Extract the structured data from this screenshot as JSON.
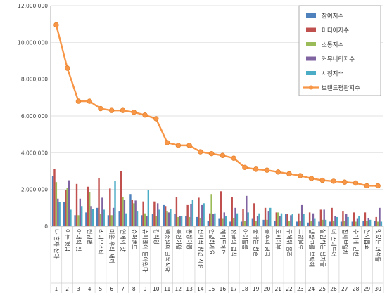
{
  "chart_data": {
    "type": "bar+line",
    "categories": [
      "1",
      "2",
      "3",
      "4",
      "5",
      "6",
      "7",
      "8",
      "9",
      "10",
      "11",
      "12",
      "13",
      "14",
      "15",
      "16",
      "17",
      "18",
      "19",
      "20",
      "21",
      "22",
      "23",
      "24",
      "25",
      "26",
      "27",
      "28",
      "29",
      "30"
    ],
    "program_names": [
      "나 혼자 산다",
      "아는 형님",
      "아내의 맛",
      "런닝맨",
      "라디오스타",
      "미운 우리 새끼",
      "연애의 맛",
      "슈퍼밴드",
      "슈퍼맨이 돌아왔다",
      "강식당",
      "백종원의 골목식당",
      "복면가왕",
      "동상이몽",
      "전지적 참견 시점",
      "안녕하세요",
      "해피투게더",
      "정글의 법칙",
      "아이돌룸",
      "불타는 청춘",
      "불후의 명곡",
      "도시어부",
      "구해줘 홈즈",
      "그랑블루",
      "냉장고를 부탁해",
      "살림하는 남자들",
      "더 짠내투어",
      "집사부일체",
      "수미네 반찬",
      "한끼줍쇼",
      "맛있는 녀석들"
    ],
    "y_ticks": [
      "0",
      "2,000,000",
      "4,000,000",
      "6,000,000",
      "8,000,000",
      "10,000,000",
      "12,000,000"
    ],
    "ylim": [
      0,
      12000000
    ],
    "legend_position": "top-right",
    "series": [
      {
        "name": "참여지수",
        "type": "bar",
        "color": "#4f81bd",
        "values": [
          2750000,
          1300000,
          600000,
          750000,
          1000000,
          600000,
          800000,
          1750000,
          600000,
          650000,
          1150000,
          650000,
          550000,
          500000,
          300000,
          400000,
          250000,
          250000,
          400000,
          350000,
          300000,
          650000,
          250000,
          200000,
          250000,
          250000,
          250000,
          250000,
          300000,
          300000
        ]
      },
      {
        "name": "미디어지수",
        "type": "bar",
        "color": "#c0504d",
        "values": [
          3100000,
          1950000,
          2300000,
          2150000,
          2600000,
          2050000,
          3000000,
          1450000,
          1350000,
          1350000,
          1100000,
          1600000,
          1150000,
          1550000,
          700000,
          1900000,
          1600000,
          950000,
          1250000,
          1000000,
          750000,
          650000,
          700000,
          750000,
          900000,
          1000000,
          800000,
          750000,
          750000,
          500000
        ]
      },
      {
        "name": "소통지수",
        "type": "bar",
        "color": "#9bbb59",
        "values": [
          2400000,
          2100000,
          600000,
          1850000,
          650000,
          600000,
          1600000,
          1250000,
          700000,
          550000,
          800000,
          500000,
          500000,
          450000,
          1750000,
          400000,
          450000,
          300000,
          300000,
          350000,
          750000,
          300000,
          300000,
          300000,
          350000,
          300000,
          300000,
          250000,
          300000,
          250000
        ]
      },
      {
        "name": "커뮤니티지수",
        "type": "bar",
        "color": "#8064a2",
        "values": [
          1500000,
          2500000,
          1500000,
          1100000,
          1550000,
          1000000,
          1450000,
          1400000,
          550000,
          1250000,
          750000,
          550000,
          1200000,
          1150000,
          650000,
          750000,
          1000000,
          1650000,
          550000,
          800000,
          550000,
          600000,
          1150000,
          700000,
          900000,
          550000,
          650000,
          400000,
          450000,
          1000000
        ]
      },
      {
        "name": "시청지수",
        "type": "bar",
        "color": "#4bacc6",
        "values": [
          1300000,
          900000,
          1100000,
          950000,
          900000,
          2450000,
          700000,
          800000,
          1950000,
          900000,
          950000,
          550000,
          1450000,
          1250000,
          700000,
          550000,
          700000,
          750000,
          700000,
          1000000,
          700000,
          650000,
          650000,
          400000,
          350000,
          500000,
          500000,
          550000,
          350000,
          250000
        ]
      },
      {
        "name": "브랜드평판지수",
        "type": "line",
        "color": "#f79646",
        "values": [
          10950000,
          8600000,
          6800000,
          6800000,
          6400000,
          6300000,
          6300000,
          6200000,
          6050000,
          5850000,
          4550000,
          4400000,
          4400000,
          4050000,
          3950000,
          3850000,
          3700000,
          3200000,
          3100000,
          3050000,
          2950000,
          2850000,
          2750000,
          2600000,
          2500000,
          2450000,
          2400000,
          2350000,
          2200000,
          2200000
        ]
      }
    ]
  }
}
